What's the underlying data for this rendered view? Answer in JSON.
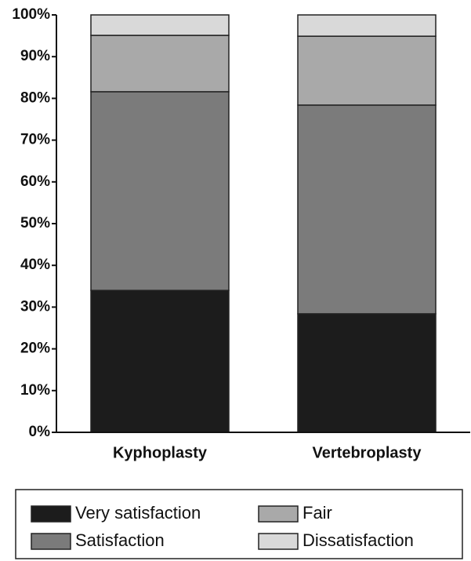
{
  "chart_data": {
    "type": "stacked_bar",
    "categories": [
      "Kyphoplasty",
      "Vertebroplasty"
    ],
    "series": [
      {
        "name": "Very satisfaction",
        "color": "#1c1c1c",
        "values": [
          34,
          28.4
        ]
      },
      {
        "name": "Satisfaction",
        "color": "#7b7b7b",
        "values": [
          47.6,
          50
        ]
      },
      {
        "name": "Fair",
        "color": "#a9a9a9",
        "values": [
          13.5,
          16.5
        ]
      },
      {
        "name": "Dissatisfaction",
        "color": "#d9d9d9",
        "values": [
          4.9,
          5.1
        ]
      }
    ],
    "ylim": [
      0,
      100
    ],
    "yticks": [
      {
        "value": 0,
        "label": "0%"
      },
      {
        "value": 10,
        "label": "10%"
      },
      {
        "value": 20,
        "label": "20%"
      },
      {
        "value": 30,
        "label": "30%"
      },
      {
        "value": 40,
        "label": "40%"
      },
      {
        "value": 50,
        "label": "50%"
      },
      {
        "value": 60,
        "label": "60%"
      },
      {
        "value": 70,
        "label": "70%"
      },
      {
        "value": 80,
        "label": "80%"
      },
      {
        "value": 90,
        "label": "90%"
      },
      {
        "value": 100,
        "label": "100%"
      }
    ]
  }
}
